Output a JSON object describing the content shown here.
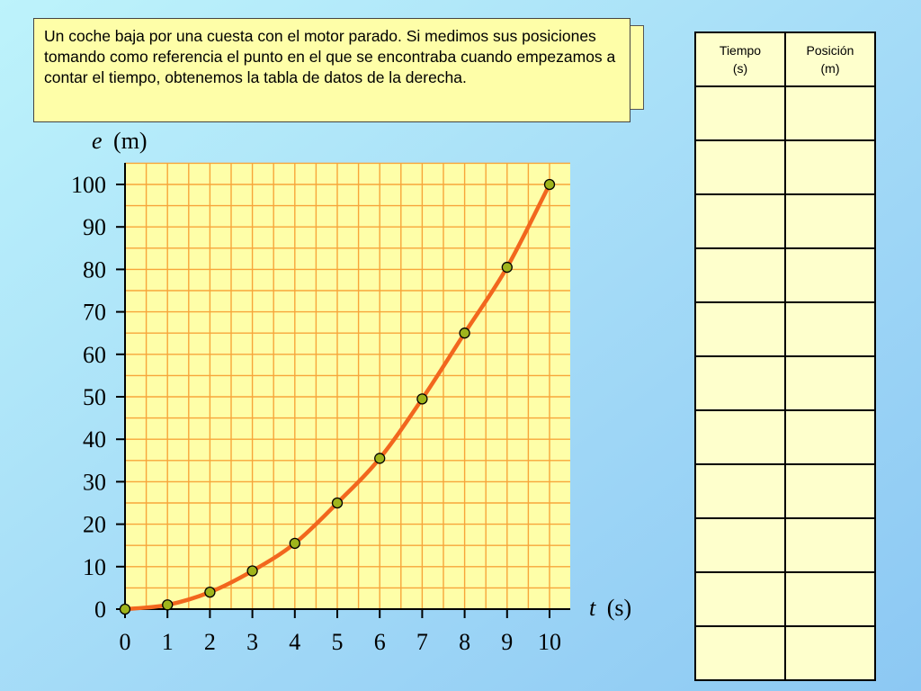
{
  "description_box": {
    "text": "Un coche baja por una cuesta con el motor parado. Si medimos sus posiciones tomando como referencia el punto en el que se encontraba cuando empezamos a contar el tiempo, obtenemos la tabla de datos de la derecha."
  },
  "chart_data": {
    "type": "scatter",
    "ylabel_symbol": "e",
    "ylabel_unit": "(m)",
    "xlabel_symbol": "t",
    "xlabel_unit": "(s)",
    "x": [
      0,
      1,
      2,
      3,
      4,
      5,
      6,
      7,
      8,
      9,
      10
    ],
    "y": [
      0,
      1,
      4,
      9,
      15.5,
      25,
      35.5,
      49.5,
      65,
      80.5,
      100
    ],
    "xlim": [
      0,
      10
    ],
    "ylim": [
      0,
      100
    ],
    "xticks": [
      "0",
      "1",
      "2",
      "3",
      "4",
      "5",
      "6",
      "7",
      "8",
      "9",
      "10"
    ],
    "yticks": [
      "0",
      "10",
      "20",
      "30",
      "40",
      "50",
      "60",
      "70",
      "80",
      "90",
      "100"
    ],
    "grid": true,
    "fit_curve": true,
    "colors": {
      "grid": "#f7a53a",
      "curve": "#f2671e",
      "point_fill": "#9fb51c",
      "plot_bg": "#fefea8"
    }
  },
  "data_table": {
    "headers": [
      {
        "line1": "Tiempo",
        "line2": "(s)"
      },
      {
        "line1": "Posición",
        "line2": "(m)"
      }
    ],
    "rows": 11
  }
}
